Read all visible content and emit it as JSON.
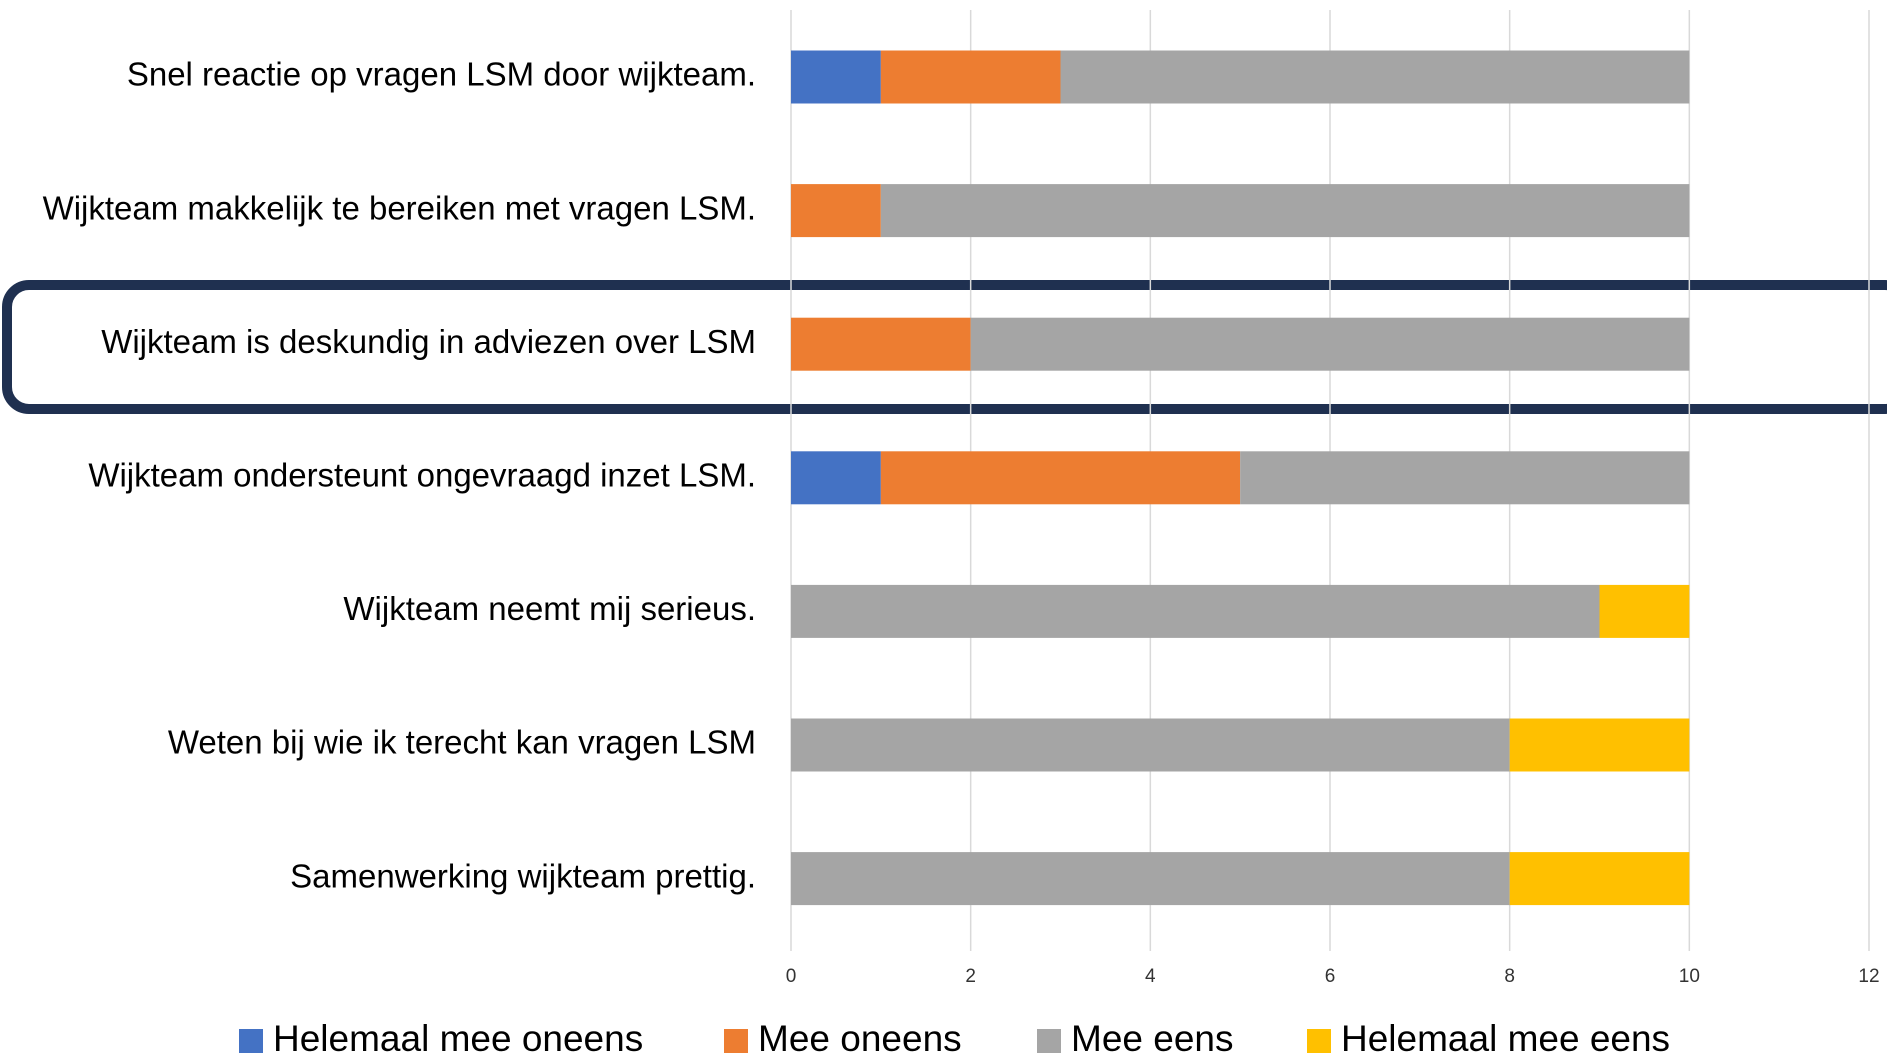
{
  "chart_data": {
    "type": "stacked_barh",
    "categories": [
      "Snel reactie op vragen LSM door wijkteam.",
      "Wijkteam makkelijk te bereiken met vragen LSM.",
      "Wijkteam is deskundig in adviezen over LSM",
      "Wijkteam ondersteunt ongevraagd inzet LSM.",
      "Wijkteam neemt mij serieus.",
      "Weten bij wie ik terecht kan vragen LSM",
      "Samenwerking wijkteam prettig."
    ],
    "series": [
      {
        "name": "Helemaal mee oneens",
        "color": "#4472c4",
        "values": [
          1,
          0,
          0,
          1,
          0,
          0,
          0
        ]
      },
      {
        "name": "Mee oneens",
        "color": "#ed7d31",
        "values": [
          2,
          1,
          2,
          4,
          0,
          0,
          0
        ]
      },
      {
        "name": "Mee eens",
        "color": "#a5a5a5",
        "values": [
          7,
          9,
          8,
          5,
          9,
          8,
          8
        ]
      },
      {
        "name": "Helemaal mee eens",
        "color": "#ffc000",
        "values": [
          0,
          0,
          0,
          0,
          1,
          2,
          2
        ]
      }
    ],
    "xlim": [
      0,
      12
    ],
    "xticks": [
      0,
      2,
      4,
      6,
      8,
      10,
      12
    ],
    "grid": true
  }
}
